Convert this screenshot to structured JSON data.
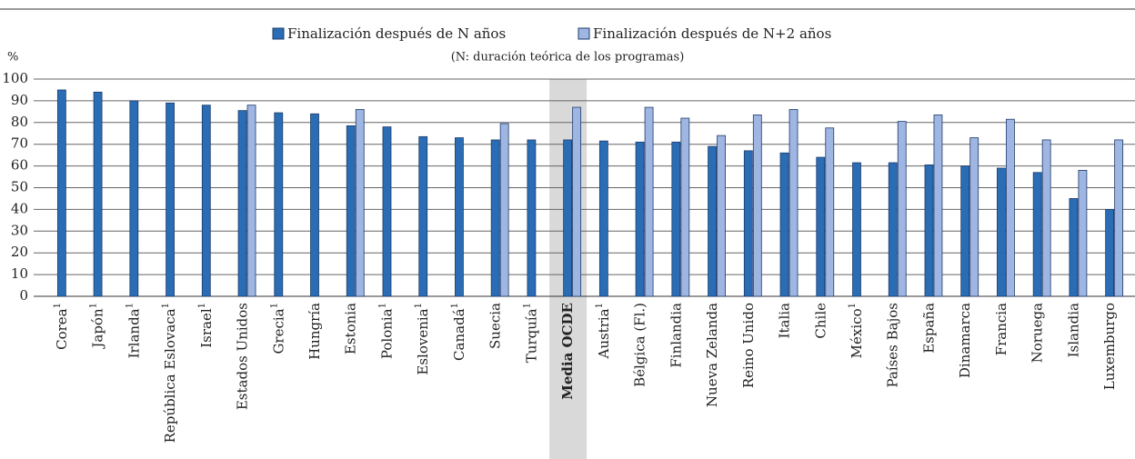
{
  "chart_data": {
    "type": "bar",
    "subtitle": "(N: duración teórica de los programas)",
    "y_label": "%",
    "categories": [
      "Corea",
      "Japón",
      "Irlanda",
      "República Eslovaca",
      "Israel",
      "Estados Unidos",
      "Grecia",
      "Hungría",
      "Estonia",
      "Polonia",
      "Eslovenia",
      "Canadá",
      "Suecia",
      "Turquía",
      "Media OCDE",
      "Austria",
      "Bélgica (Fl.)",
      "Finlandia",
      "Nueva Zelanda",
      "Reino Unido",
      "Italia",
      "Chile",
      "México",
      "Países Bajos",
      "España",
      "Dinamarca",
      "Francia",
      "Noruega",
      "Islandia",
      "Luxemburgo"
    ],
    "category_notes": [
      "1",
      "1",
      "1",
      "1",
      "1",
      null,
      "1",
      null,
      null,
      "1",
      "1",
      "1",
      null,
      "1",
      null,
      "1",
      null,
      null,
      null,
      null,
      null,
      null,
      "1",
      null,
      null,
      null,
      null,
      null,
      null,
      null
    ],
    "highlight_index": 14,
    "series": [
      {
        "name": "Finalización después de N años",
        "color": "#2a6db5",
        "values": [
          95,
          94,
          90,
          89,
          88,
          85.5,
          84.5,
          84,
          78.5,
          78,
          73.5,
          73,
          72,
          72,
          72,
          71.5,
          71,
          71,
          69,
          67,
          66,
          64,
          61.5,
          61.5,
          60.5,
          60,
          59,
          57,
          45,
          40
        ]
      },
      {
        "name": "Finalización después de N+2 años",
        "color": "#9fb5e2",
        "values": [
          null,
          null,
          null,
          null,
          null,
          88,
          null,
          null,
          86,
          null,
          null,
          null,
          79.5,
          null,
          87,
          null,
          87,
          82,
          74,
          83.5,
          86,
          77.5,
          null,
          80.5,
          83.5,
          73,
          81.5,
          72,
          58,
          72
        ]
      }
    ],
    "ylim": [
      0,
      100
    ],
    "yticks": [
      0,
      10,
      20,
      30,
      40,
      50,
      60,
      70,
      80,
      90,
      100
    ],
    "grid": true
  }
}
